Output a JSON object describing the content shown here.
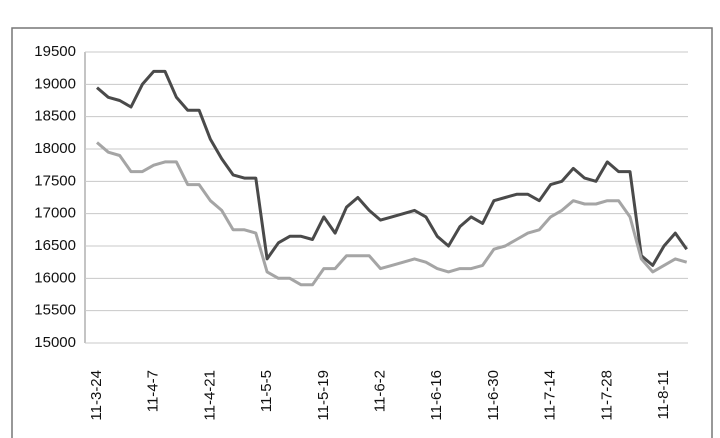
{
  "chart_data": {
    "type": "line",
    "categories": [
      "11-3-24",
      null,
      null,
      null,
      null,
      "11-4-7",
      null,
      null,
      null,
      null,
      "11-4-21",
      null,
      null,
      null,
      null,
      "11-5-5",
      null,
      null,
      null,
      null,
      "11-5-19",
      null,
      null,
      null,
      null,
      "11-6-2",
      null,
      null,
      null,
      null,
      "11-6-16",
      null,
      null,
      null,
      null,
      "11-6-30",
      null,
      null,
      null,
      null,
      "11-7-14",
      null,
      null,
      null,
      null,
      "11-7-28",
      null,
      null,
      null,
      null,
      "11-8-11",
      null,
      null
    ],
    "series": [
      {
        "color": "#4a4a4a",
        "values": [
          18950,
          18800,
          18750,
          18650,
          19000,
          19200,
          19200,
          18800,
          18600,
          18600,
          18150,
          17850,
          17600,
          17550,
          17550,
          16300,
          16550,
          16650,
          16650,
          16600,
          16950,
          16700,
          17100,
          17250,
          17050,
          16900,
          16950,
          17000,
          17050,
          16950,
          16650,
          16500,
          16800,
          16950,
          16850,
          17200,
          17250,
          17300,
          17300,
          17200,
          17450,
          17500,
          17700,
          17550,
          17500,
          17800,
          17650,
          17650,
          16350,
          16200,
          16500,
          16700,
          16450
        ]
      },
      {
        "color": "#a5a5a5",
        "values": [
          18100,
          17950,
          17900,
          17650,
          17650,
          17750,
          17800,
          17800,
          17450,
          17450,
          17200,
          17050,
          16750,
          16750,
          16700,
          16100,
          16000,
          16000,
          15900,
          15900,
          16150,
          16150,
          16350,
          16350,
          16350,
          16150,
          16200,
          16250,
          16300,
          16250,
          16150,
          16100,
          16150,
          16150,
          16200,
          16450,
          16500,
          16600,
          16700,
          16750,
          16950,
          17050,
          17200,
          17150,
          17150,
          17200,
          17200,
          16950,
          16300,
          16100,
          16200,
          16300,
          16250
        ]
      }
    ],
    "ylim": [
      15000,
      19500
    ],
    "yticks": [
      15000,
      15500,
      16000,
      16500,
      17000,
      17500,
      18000,
      18500,
      19000,
      19500
    ],
    "grid": true
  }
}
